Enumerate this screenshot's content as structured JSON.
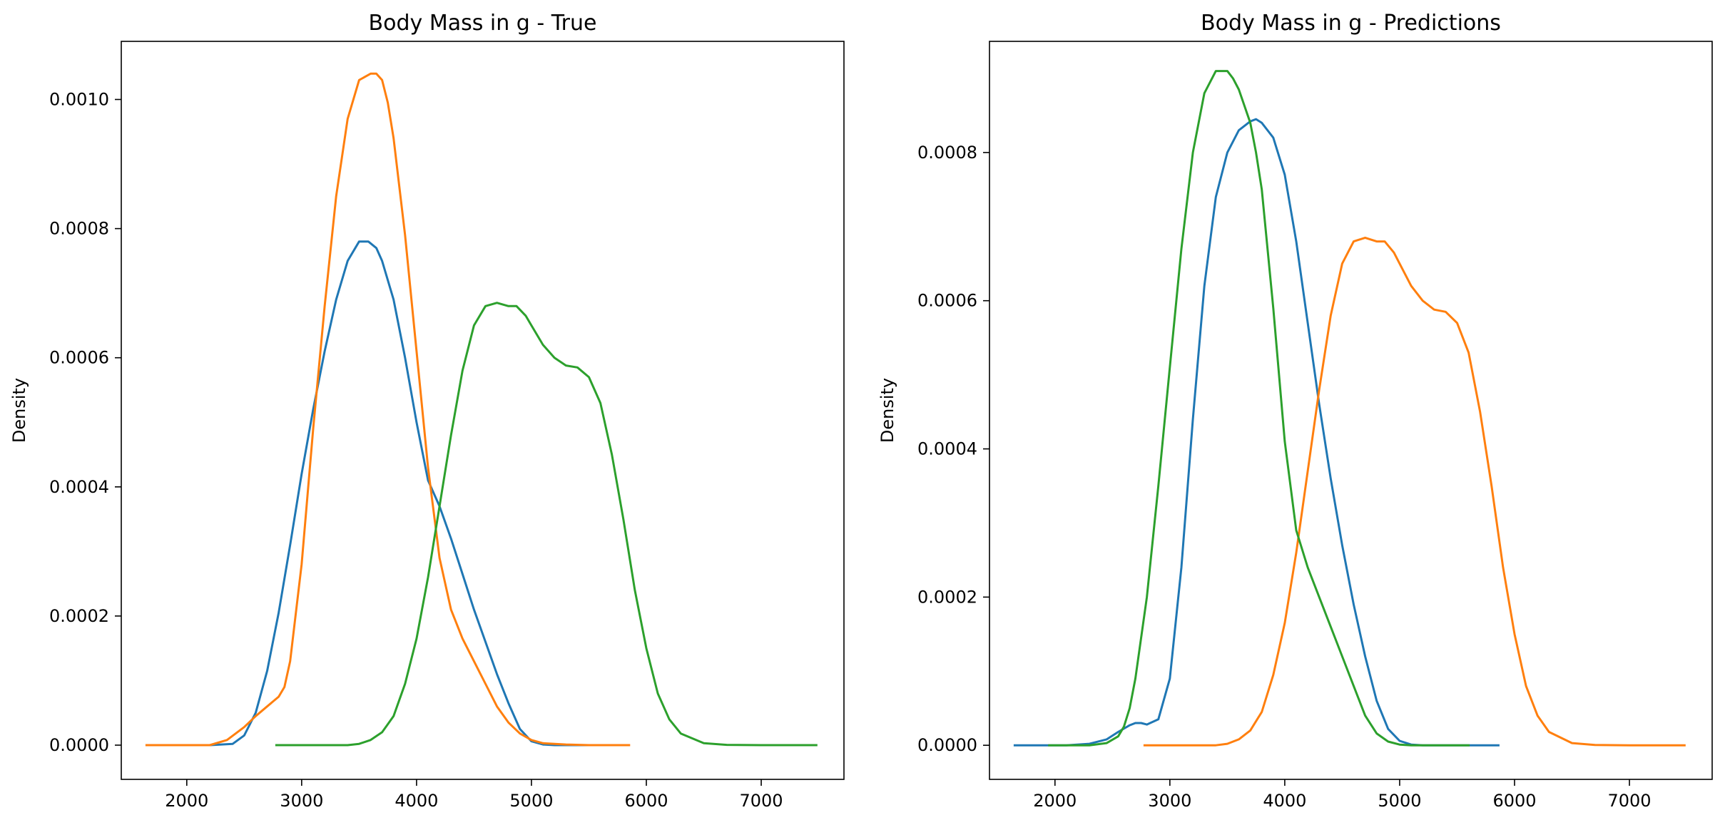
{
  "chart_data": [
    {
      "type": "line",
      "title": "Body Mass in g - True",
      "xlabel": "",
      "ylabel": "Density",
      "xlim": [
        1430,
        7720
      ],
      "ylim": [
        -5.3e-05,
        0.00109
      ],
      "xticks": [
        2000,
        3000,
        4000,
        5000,
        6000,
        7000
      ],
      "xtick_labels": [
        "2000",
        "3000",
        "4000",
        "5000",
        "6000",
        "7000"
      ],
      "yticks": [
        0,
        0.0002,
        0.0004,
        0.0006,
        0.0008,
        0.001
      ],
      "ytick_labels": [
        "0.0000",
        "0.0002",
        "0.0004",
        "0.0006",
        "0.0008",
        "0.0010"
      ],
      "series": [
        {
          "color": "#1f77b4",
          "x": [
            1950,
            2200,
            2400,
            2500,
            2600,
            2700,
            2800,
            2900,
            3000,
            3100,
            3200,
            3300,
            3400,
            3500,
            3580,
            3650,
            3700,
            3800,
            3900,
            4000,
            4100,
            4200,
            4300,
            4400,
            4500,
            4600,
            4700,
            4800,
            4900,
            5000,
            5100,
            5200,
            5400,
            5600
          ],
          "y": [
            0,
            0,
            2e-06,
            1.5e-05,
            5e-05,
            0.000115,
            0.000205,
            0.00031,
            0.00042,
            0.00052,
            0.00061,
            0.00069,
            0.00075,
            0.00078,
            0.00078,
            0.00077,
            0.00075,
            0.00069,
            0.0006,
            0.0005,
            0.00041,
            0.00037,
            0.00032,
            0.000265,
            0.00021,
            0.00016,
            0.00011,
            6.5e-05,
            2.5e-05,
            6e-06,
            1e-06,
            0,
            0,
            0
          ]
        },
        {
          "color": "#ff7f0e",
          "x": [
            1650,
            2000,
            2200,
            2350,
            2500,
            2600,
            2700,
            2800,
            2850,
            2900,
            3000,
            3100,
            3200,
            3300,
            3400,
            3500,
            3600,
            3650,
            3700,
            3750,
            3800,
            3900,
            4000,
            4100,
            4200,
            4300,
            4400,
            4500,
            4600,
            4700,
            4800,
            4900,
            5000,
            5100,
            5300,
            5500,
            5850
          ],
          "y": [
            0,
            0,
            0,
            8e-06,
            2.8e-05,
            4.5e-05,
            6e-05,
            7.5e-05,
            9e-05,
            0.00013,
            0.00028,
            0.00049,
            0.00068,
            0.00085,
            0.00097,
            0.00103,
            0.00104,
            0.00104,
            0.00103,
            0.000995,
            0.00094,
            0.00079,
            0.00061,
            0.00043,
            0.00029,
            0.00021,
            0.000165,
            0.00013,
            9.5e-05,
            6e-05,
            3.5e-05,
            1.8e-05,
            8e-06,
            3e-06,
            1e-06,
            0,
            0
          ]
        },
        {
          "color": "#2ca02c",
          "x": [
            2780,
            3400,
            3500,
            3600,
            3700,
            3800,
            3900,
            4000,
            4100,
            4200,
            4300,
            4400,
            4500,
            4600,
            4700,
            4800,
            4870,
            4950,
            5000,
            5100,
            5200,
            5300,
            5400,
            5500,
            5600,
            5700,
            5800,
            5900,
            6000,
            6100,
            6200,
            6300,
            6500,
            6700,
            7000,
            7480
          ],
          "y": [
            0,
            0,
            2e-06,
            8e-06,
            2e-05,
            4.5e-05,
            9.5e-05,
            0.000165,
            0.00026,
            0.00037,
            0.00048,
            0.00058,
            0.00065,
            0.00068,
            0.000685,
            0.00068,
            0.00068,
            0.000665,
            0.00065,
            0.00062,
            0.0006,
            0.000588,
            0.000585,
            0.00057,
            0.00053,
            0.00045,
            0.00035,
            0.00024,
            0.00015,
            8e-05,
            4e-05,
            1.8e-05,
            3e-06,
            5e-07,
            0,
            0
          ]
        }
      ]
    },
    {
      "type": "line",
      "title": "Body Mass in g - Predictions",
      "xlabel": "",
      "ylabel": "Density",
      "xlim": [
        1430,
        7720
      ],
      "ylim": [
        -4.6e-05,
        0.00095
      ],
      "xticks": [
        2000,
        3000,
        4000,
        5000,
        6000,
        7000
      ],
      "xtick_labels": [
        "2000",
        "3000",
        "4000",
        "5000",
        "6000",
        "7000"
      ],
      "yticks": [
        0,
        0.0002,
        0.0004,
        0.0006,
        0.0008
      ],
      "ytick_labels": [
        "0.0000",
        "0.0002",
        "0.0004",
        "0.0006",
        "0.0008"
      ],
      "series": [
        {
          "color": "#1f77b4",
          "x": [
            1650,
            2100,
            2300,
            2450,
            2550,
            2650,
            2700,
            2750,
            2800,
            2900,
            3000,
            3100,
            3200,
            3300,
            3400,
            3500,
            3600,
            3700,
            3750,
            3800,
            3900,
            4000,
            4100,
            4200,
            4300,
            4400,
            4500,
            4600,
            4700,
            4800,
            4900,
            5000,
            5100,
            5200,
            5400,
            5860
          ],
          "y": [
            0,
            0,
            2e-06,
            8e-06,
            1.8e-05,
            2.7e-05,
            3e-05,
            3e-05,
            2.8e-05,
            3.5e-05,
            9e-05,
            0.00024,
            0.00044,
            0.00062,
            0.00074,
            0.0008,
            0.00083,
            0.000842,
            0.000845,
            0.00084,
            0.00082,
            0.00077,
            0.00068,
            0.00057,
            0.00046,
            0.00036,
            0.00027,
            0.00019,
            0.00012,
            6e-05,
            2.2e-05,
            6e-06,
            1e-06,
            0,
            0,
            0
          ]
        },
        {
          "color": "#ff7f0e",
          "x": [
            2780,
            3400,
            3500,
            3600,
            3700,
            3800,
            3900,
            4000,
            4100,
            4200,
            4300,
            4400,
            4500,
            4600,
            4700,
            4800,
            4870,
            4950,
            5000,
            5100,
            5200,
            5300,
            5400,
            5500,
            5600,
            5700,
            5800,
            5900,
            6000,
            6100,
            6200,
            6300,
            6500,
            6700,
            7000,
            7480
          ],
          "y": [
            0,
            0,
            2e-06,
            8e-06,
            2e-05,
            4.5e-05,
            9.5e-05,
            0.000165,
            0.00026,
            0.00037,
            0.00048,
            0.00058,
            0.00065,
            0.00068,
            0.000685,
            0.00068,
            0.00068,
            0.000665,
            0.00065,
            0.00062,
            0.0006,
            0.000588,
            0.000585,
            0.00057,
            0.00053,
            0.00045,
            0.00035,
            0.00024,
            0.00015,
            8e-05,
            4e-05,
            1.8e-05,
            3e-06,
            5e-07,
            0,
            0
          ]
        },
        {
          "color": "#2ca02c",
          "x": [
            1950,
            2300,
            2450,
            2550,
            2600,
            2650,
            2700,
            2800,
            2900,
            3000,
            3100,
            3200,
            3300,
            3400,
            3500,
            3550,
            3600,
            3700,
            3750,
            3800,
            3900,
            4000,
            4100,
            4200,
            4300,
            4400,
            4500,
            4600,
            4700,
            4800,
            4900,
            5000,
            5100,
            5200,
            5400,
            5600
          ],
          "y": [
            0,
            0,
            3e-06,
            1.2e-05,
            2.5e-05,
            5e-05,
            9e-05,
            0.0002,
            0.00035,
            0.00051,
            0.00067,
            0.0008,
            0.00088,
            0.00091,
            0.00091,
            0.0009,
            0.000885,
            0.00084,
            0.0008,
            0.00075,
            0.00059,
            0.00041,
            0.00029,
            0.00024,
            0.0002,
            0.00016,
            0.00012,
            8e-05,
            4e-05,
            1.6e-05,
            5e-06,
            1e-06,
            0,
            0,
            0,
            0
          ]
        }
      ]
    }
  ]
}
